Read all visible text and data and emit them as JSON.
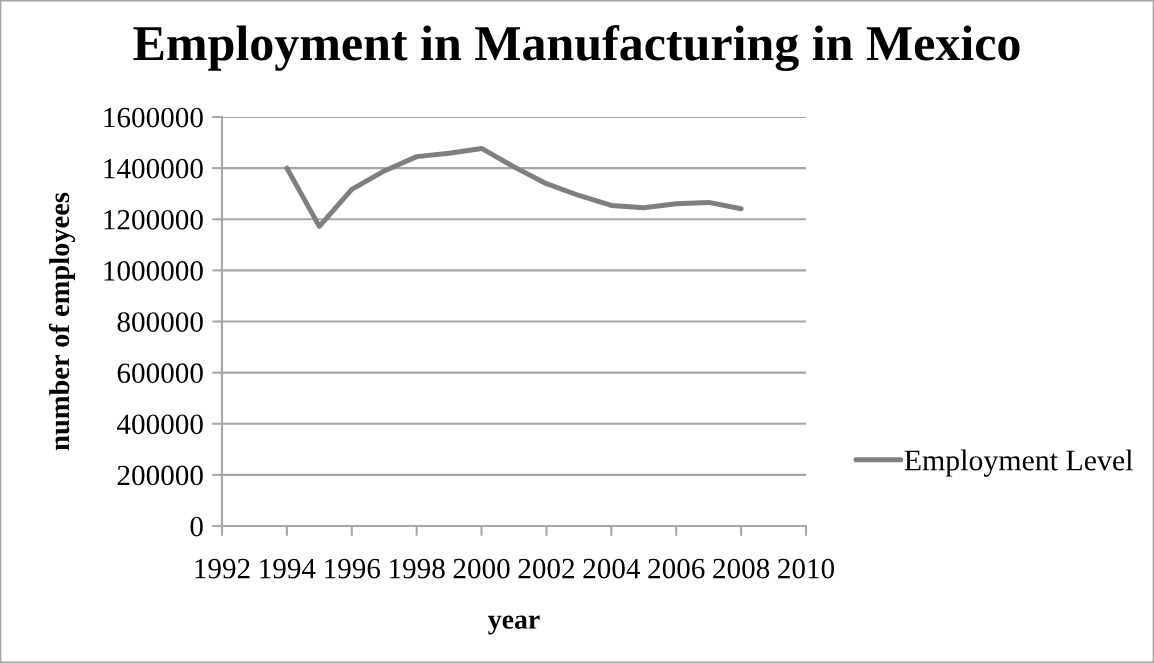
{
  "chart_data": {
    "type": "line",
    "title": "Employment in Manufacturing in Mexico",
    "xlabel": "year",
    "ylabel": "number of employees",
    "x": [
      1994,
      1995,
      1996,
      1997,
      1998,
      1999,
      2000,
      2001,
      2002,
      2003,
      2004,
      2005,
      2006,
      2007,
      2008
    ],
    "series": [
      {
        "name": "Employment Level",
        "color": "#7f7f7f",
        "values": [
          1400000,
          1172000,
          1317000,
          1389000,
          1445000,
          1458000,
          1477000,
          1405000,
          1339000,
          1293000,
          1254000,
          1245000,
          1261000,
          1266000,
          1241000
        ]
      }
    ],
    "xlim": [
      1992,
      2010
    ],
    "xticks": [
      1992,
      1994,
      1996,
      1998,
      2000,
      2002,
      2004,
      2006,
      2008,
      2010
    ],
    "ylim": [
      0,
      1600000
    ],
    "yticks": [
      0,
      200000,
      400000,
      600000,
      800000,
      1000000,
      1200000,
      1400000,
      1600000
    ],
    "grid": "y",
    "legend": "right",
    "line_style": "solid"
  }
}
